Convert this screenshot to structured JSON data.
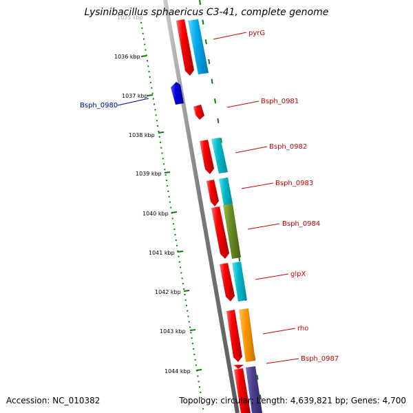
{
  "title": "Lysinibacillus sphaericus C3-41, complete genome",
  "footer": {
    "accession": "Accession: NC_010382",
    "topology": "Topology: circular; Length: 4,639,821 bp; Genes: 4,700"
  },
  "colors": {
    "backbone": "#808080",
    "tick": "#0a7a0a",
    "forward_label": "#cc0000",
    "reverse_label": "#0000aa"
  },
  "ticks": [
    {
      "label": "1035 kbp",
      "faded": true
    },
    {
      "label": "1036 kbp"
    },
    {
      "label": "1037 kbp"
    },
    {
      "label": "1038 kbp"
    },
    {
      "label": "1039 kbp"
    },
    {
      "label": "1040 kbp"
    },
    {
      "label": "1041 kbp"
    },
    {
      "label": "1042 kbp"
    },
    {
      "label": "1043 kbp"
    },
    {
      "label": "1044 kbp"
    }
  ],
  "labels": [
    {
      "text": "pyrG",
      "strand": "forward"
    },
    {
      "text": "Bsph_0980",
      "strand": "reverse"
    },
    {
      "text": "Bsph_0981",
      "strand": "forward"
    },
    {
      "text": "Bsph_0982",
      "strand": "forward"
    },
    {
      "text": "Bsph_0983",
      "strand": "forward"
    },
    {
      "text": "Bsph_0984",
      "strand": "forward"
    },
    {
      "text": "glpX",
      "strand": "forward"
    },
    {
      "text": "rho",
      "strand": "forward"
    },
    {
      "text": "Bsph_0987",
      "strand": "forward"
    }
  ],
  "gene_colors": [
    "#ee0000",
    "#00aaee",
    "#0000dd",
    "#00bbcc",
    "#6b8e23",
    "#ff9900",
    "#4b3f8f"
  ]
}
